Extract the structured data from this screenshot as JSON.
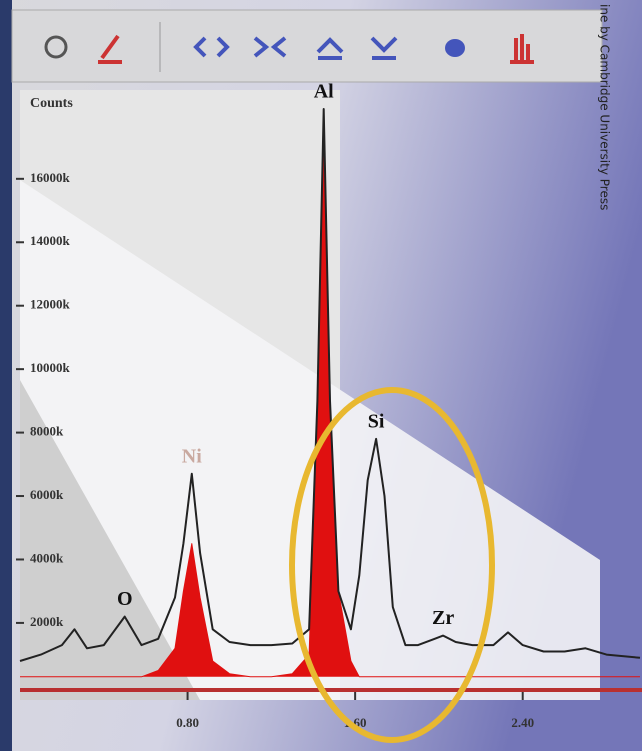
{
  "chart_data": {
    "type": "line",
    "y_label": "Counts",
    "credit": "ine by Cambridge University Press",
    "x": [
      0.0,
      0.1,
      0.2,
      0.26,
      0.32,
      0.4,
      0.5,
      0.58,
      0.66,
      0.74,
      0.78,
      0.82,
      0.86,
      0.92,
      1.0,
      1.1,
      1.2,
      1.3,
      1.38,
      1.42,
      1.45,
      1.48,
      1.52,
      1.58,
      1.62,
      1.66,
      1.7,
      1.74,
      1.78,
      1.84,
      1.9,
      1.98,
      2.02,
      2.08,
      2.16,
      2.26,
      2.33,
      2.4,
      2.5,
      2.6,
      2.7,
      2.8,
      2.96
    ],
    "series": [
      {
        "color": "#e01010",
        "fill": true,
        "values": [
          300,
          300,
          300,
          300,
          300,
          300,
          300,
          300,
          500,
          1200,
          3000,
          4500,
          2800,
          800,
          400,
          300,
          300,
          400,
          1000,
          9000,
          17500,
          9000,
          3000,
          800,
          300,
          300,
          300,
          300,
          300,
          300,
          300,
          300,
          300,
          300,
          300,
          300,
          300,
          300,
          300,
          300,
          300,
          300,
          300
        ]
      },
      {
        "color": "#222222",
        "fill": false,
        "values": [
          800,
          1000,
          1300,
          1800,
          1200,
          1300,
          2200,
          1300,
          1500,
          2800,
          4500,
          6700,
          4200,
          1800,
          1400,
          1300,
          1300,
          1350,
          1800,
          9000,
          18200,
          9000,
          3000,
          1800,
          3500,
          6500,
          7800,
          6000,
          2500,
          1300,
          1300,
          1500,
          1600,
          1400,
          1300,
          1300,
          1700,
          1300,
          1100,
          1100,
          1200,
          1000,
          900
        ]
      }
    ],
    "annotations": [
      {
        "text": "Al",
        "x": 1.45,
        "y": 18200,
        "color": "#111111"
      },
      {
        "text": "Si",
        "x": 1.7,
        "y": 7800,
        "color": "#111111"
      },
      {
        "text": "Ni",
        "x": 0.82,
        "y": 6700,
        "color": "#c9a9a0"
      },
      {
        "text": "O",
        "x": 0.5,
        "y": 2200,
        "color": "#111111"
      },
      {
        "text": "Zr",
        "x": 2.02,
        "y": 1600,
        "color": "#111111"
      }
    ],
    "xlim": [
      0,
      2.96
    ],
    "ylim": [
      -430,
      18800
    ],
    "xticks": [
      {
        "value": 0.8,
        "label": "0.80"
      },
      {
        "value": 1.6,
        "label": "1.60"
      },
      {
        "value": 2.4,
        "label": "2.40"
      }
    ],
    "yticks": [
      {
        "value": 2000,
        "label": "2000k"
      },
      {
        "value": 4000,
        "label": "4000k"
      },
      {
        "value": 6000,
        "label": "6000k"
      },
      {
        "value": 8000,
        "label": "8000k"
      },
      {
        "value": 10000,
        "label": "10000k"
      },
      {
        "value": 12000,
        "label": "12000k"
      },
      {
        "value": 14000,
        "label": "14000k"
      },
      {
        "value": 16000,
        "label": "16000k"
      }
    ]
  }
}
